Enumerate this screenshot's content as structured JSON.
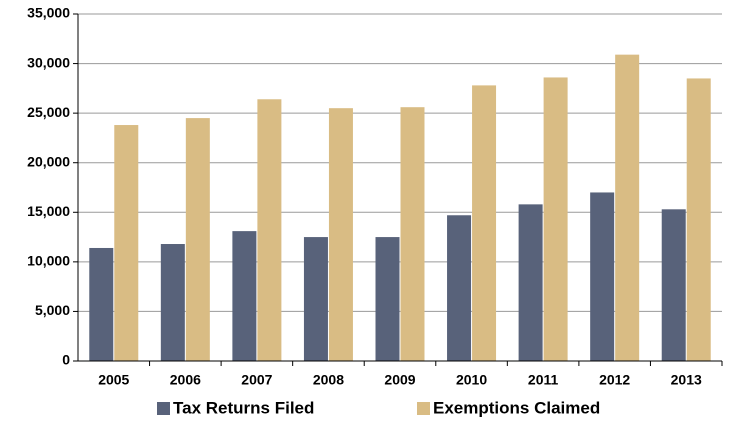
{
  "chart_data": {
    "type": "bar",
    "categories": [
      "2005",
      "2006",
      "2007",
      "2008",
      "2009",
      "2010",
      "2011",
      "2012",
      "2013"
    ],
    "series": [
      {
        "name": "Tax Returns Filed",
        "color": "#58627a",
        "values": [
          11400,
          11800,
          13100,
          12500,
          12500,
          14700,
          15800,
          17000,
          15300
        ]
      },
      {
        "name": "Exemptions Claimed",
        "color": "#d9bc84",
        "values": [
          23800,
          24500,
          26400,
          25500,
          25600,
          27800,
          28600,
          30900,
          28500
        ]
      }
    ],
    "ylim": [
      0,
      35000
    ],
    "yticks": [
      0,
      {
        "value": 5000,
        "label": "5,000"
      },
      {
        "value": 10000,
        "label": "10,000"
      },
      {
        "value": 15000,
        "label": "15,000"
      },
      {
        "value": 20000,
        "label": "20,000"
      },
      {
        "value": 25000,
        "label": "25,000"
      },
      {
        "value": 30000,
        "label": "30,000"
      },
      {
        "value": 35000,
        "label": "35,000"
      }
    ],
    "grid": true,
    "legend": "bottom"
  }
}
